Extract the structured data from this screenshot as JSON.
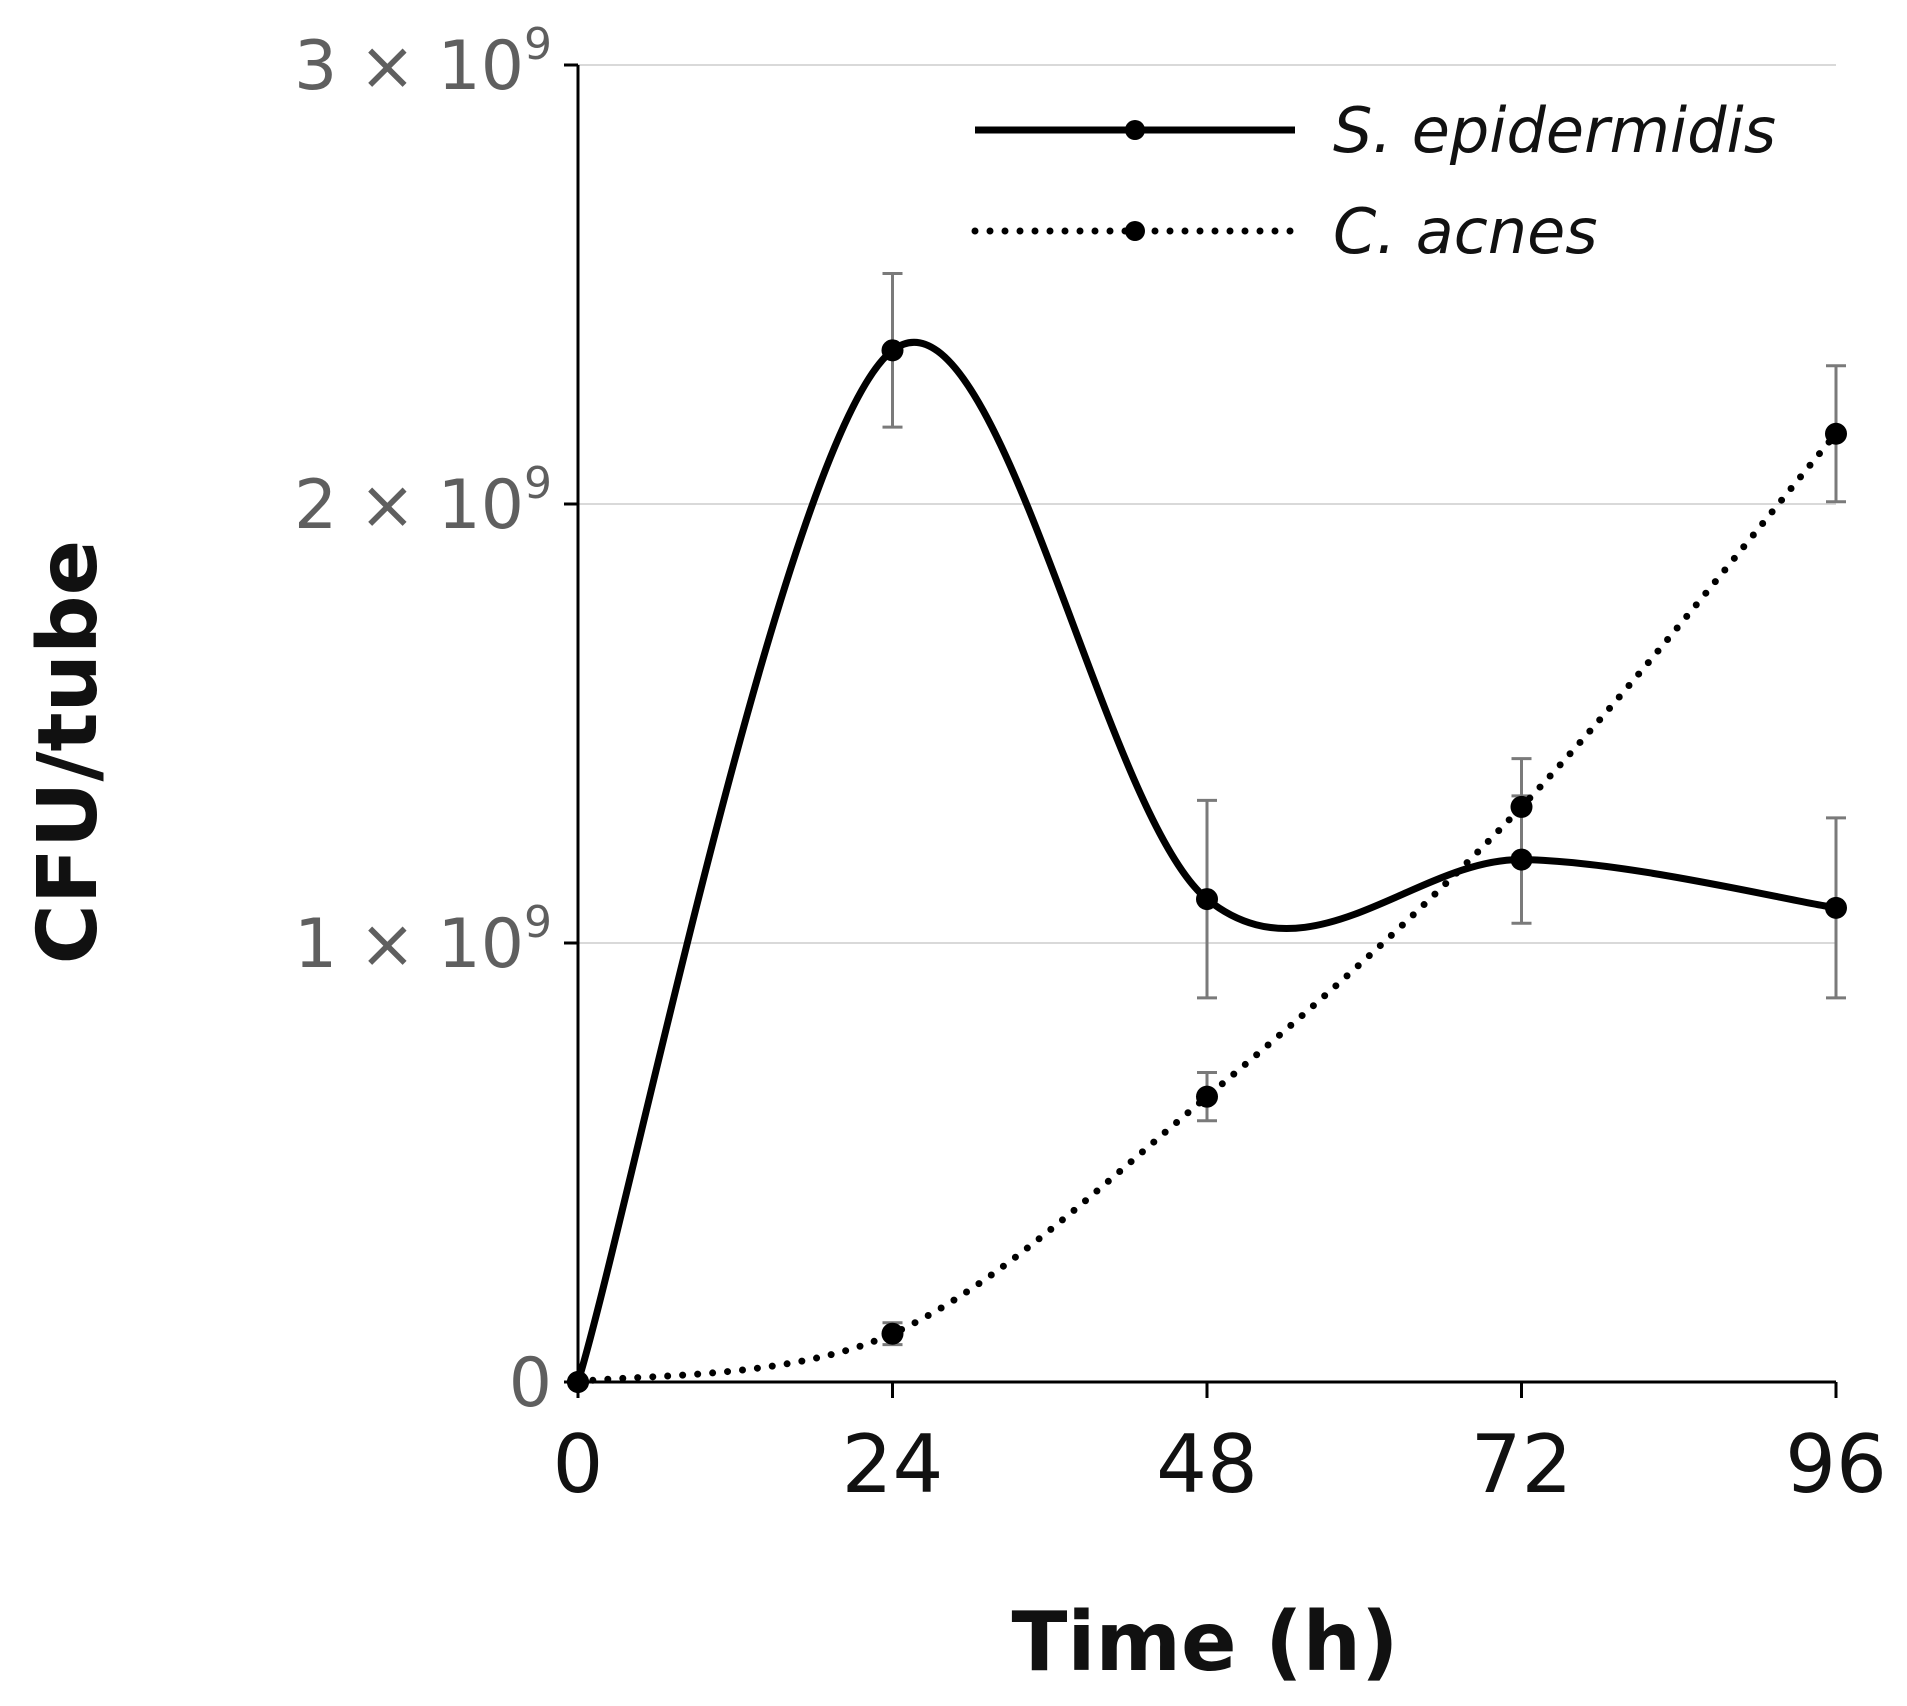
{
  "chart_data": {
    "type": "line",
    "xlabel": "Time (h)",
    "ylabel": "CFU/tube",
    "x": [
      0,
      24,
      48,
      72,
      96
    ],
    "x_ticks": [
      "0",
      "24",
      "48",
      "72",
      "96"
    ],
    "ylim": [
      0,
      3000000000
    ],
    "y_ticks": [
      {
        "value": 0,
        "base": "0",
        "exp": ""
      },
      {
        "value": 1000000000,
        "base": "1 × 10",
        "exp": "9"
      },
      {
        "value": 2000000000,
        "base": "2 × 10",
        "exp": "9"
      },
      {
        "value": 3000000000,
        "base": "3 × 10",
        "exp": "9"
      }
    ],
    "grid": "horizontal",
    "legend_position": "top-right",
    "series": [
      {
        "name": "S. epidermidis",
        "style": "solid",
        "color": "#000000",
        "values": [
          0,
          2350000000,
          1100000000,
          1190000000,
          1080000000
        ],
        "errors": [
          0,
          175000000,
          225000000,
          145000000,
          205000000
        ]
      },
      {
        "name": "C. acnes",
        "style": "dotted",
        "color": "#000000",
        "values": [
          0,
          110000000,
          650000000,
          1310000000,
          2160000000
        ],
        "errors": [
          0,
          25000000,
          55000000,
          110000000,
          155000000
        ]
      }
    ]
  }
}
